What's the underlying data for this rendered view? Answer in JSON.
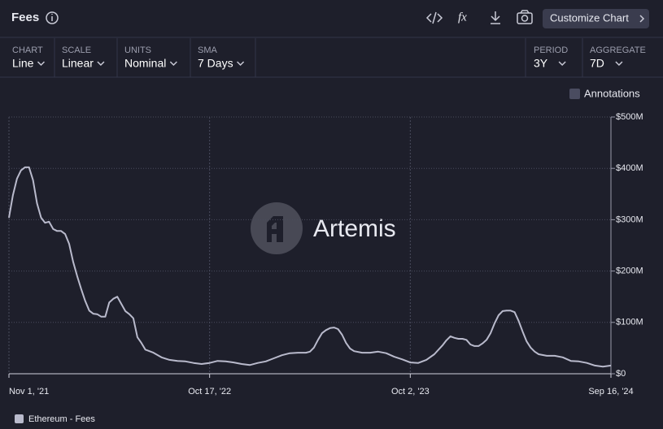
{
  "ui": {
    "title": "Fees",
    "button": "Customize Chart",
    "controls": [
      {
        "label": "CHART",
        "value": "Line"
      },
      {
        "label": "SCALE",
        "value": "Linear"
      },
      {
        "label": "UNITS",
        "value": "Nominal"
      },
      {
        "label": "SMA",
        "value": "7 Days"
      }
    ],
    "right_controls": [
      {
        "label": "PERIOD",
        "value": "3Y"
      },
      {
        "label": "AGGREGATE",
        "value": "7D"
      }
    ],
    "annotations": "Annotations",
    "watermark": "Artemis"
  },
  "chart_data": {
    "type": "line",
    "x": [
      "2021-11-01",
      "2021-11-08",
      "2021-11-15",
      "2021-11-22",
      "2021-11-29",
      "2021-12-06",
      "2021-12-13",
      "2021-12-20",
      "2021-12-27",
      "2022-01-03",
      "2022-01-10",
      "2022-01-17",
      "2022-01-24",
      "2022-01-31",
      "2022-02-07",
      "2022-02-14",
      "2022-02-21",
      "2022-02-28",
      "2022-03-07",
      "2022-03-14",
      "2022-03-21",
      "2022-03-28",
      "2022-04-04",
      "2022-04-11",
      "2022-04-18",
      "2022-04-25",
      "2022-05-02",
      "2022-05-09",
      "2022-05-16",
      "2022-05-23",
      "2022-05-30",
      "2022-06-06",
      "2022-06-13",
      "2022-06-20",
      "2022-06-27",
      "2022-07-04",
      "2022-07-11",
      "2022-07-25",
      "2022-08-08",
      "2022-08-22",
      "2022-09-05",
      "2022-09-19",
      "2022-10-03",
      "2022-10-17",
      "2022-10-31",
      "2022-11-14",
      "2022-11-28",
      "2022-12-12",
      "2022-12-26",
      "2023-01-09",
      "2023-01-23",
      "2023-02-06",
      "2023-02-20",
      "2023-03-06",
      "2023-03-20",
      "2023-04-03",
      "2023-04-10",
      "2023-04-17",
      "2023-04-24",
      "2023-05-01",
      "2023-05-08",
      "2023-05-15",
      "2023-05-22",
      "2023-05-29",
      "2023-06-05",
      "2023-06-12",
      "2023-06-19",
      "2023-06-26",
      "2023-07-10",
      "2023-07-24",
      "2023-08-07",
      "2023-08-21",
      "2023-09-04",
      "2023-09-18",
      "2023-10-02",
      "2023-10-16",
      "2023-10-30",
      "2023-11-13",
      "2023-11-27",
      "2023-12-04",
      "2023-12-11",
      "2023-12-18",
      "2023-12-25",
      "2024-01-01",
      "2024-01-08",
      "2024-01-15",
      "2024-01-22",
      "2024-01-29",
      "2024-02-05",
      "2024-02-12",
      "2024-02-19",
      "2024-02-26",
      "2024-03-04",
      "2024-03-11",
      "2024-03-18",
      "2024-03-25",
      "2024-04-01",
      "2024-04-08",
      "2024-04-15",
      "2024-04-22",
      "2024-04-29",
      "2024-05-06",
      "2024-05-13",
      "2024-05-27",
      "2024-06-10",
      "2024-06-24",
      "2024-07-08",
      "2024-07-22",
      "2024-08-05",
      "2024-08-19",
      "2024-09-02",
      "2024-09-16"
    ],
    "series": [
      {
        "name": "Ethereum - Fees",
        "color": "#b9bacc",
        "values": [
          304000000,
          348000000,
          380000000,
          396000000,
          402000000,
          402000000,
          377000000,
          332000000,
          304000000,
          294000000,
          296000000,
          282000000,
          278000000,
          278000000,
          272000000,
          253000000,
          218000000,
          190000000,
          165000000,
          142000000,
          123000000,
          117000000,
          116000000,
          111000000,
          111000000,
          139000000,
          146000000,
          150000000,
          136000000,
          122000000,
          116000000,
          108000000,
          71000000,
          60000000,
          47000000,
          44000000,
          41000000,
          32000000,
          27000000,
          25000000,
          24000000,
          21000000,
          19000000,
          21000000,
          25000000,
          24000000,
          22000000,
          19000000,
          17000000,
          21000000,
          24000000,
          30000000,
          36000000,
          40000000,
          41000000,
          41000000,
          43000000,
          51000000,
          66000000,
          79000000,
          85000000,
          89000000,
          90000000,
          87000000,
          76000000,
          60000000,
          49000000,
          44000000,
          41000000,
          41000000,
          43000000,
          40000000,
          33000000,
          28000000,
          22000000,
          21000000,
          27000000,
          38000000,
          55000000,
          65000000,
          73000000,
          70000000,
          68000000,
          68000000,
          66000000,
          57000000,
          54000000,
          54000000,
          59000000,
          66000000,
          79000000,
          98000000,
          114000000,
          122000000,
          123000000,
          123000000,
          120000000,
          103000000,
          82000000,
          63000000,
          51000000,
          43000000,
          38000000,
          35000000,
          35000000,
          32000000,
          25000000,
          24000000,
          21000000,
          16000000,
          14000000,
          16000000
        ]
      }
    ],
    "xlim": [
      "2021-11-01",
      "2024-09-16"
    ],
    "xticks": [
      {
        "value": "2021-11-01",
        "label": "Nov 1, '21"
      },
      {
        "value": "2022-10-17",
        "label": "Oct 17, '22"
      },
      {
        "value": "2023-10-02",
        "label": "Oct 2, '23"
      },
      {
        "value": "2024-09-16",
        "label": "Sep 16, '24"
      }
    ],
    "ylim": [
      0,
      500000000
    ],
    "yticks": [
      {
        "value": 0,
        "label": "$0"
      },
      {
        "value": 100000000,
        "label": "$100M"
      },
      {
        "value": 200000000,
        "label": "$200M"
      },
      {
        "value": 300000000,
        "label": "$300M"
      },
      {
        "value": 400000000,
        "label": "$400M"
      },
      {
        "value": 500000000,
        "label": "$500M"
      }
    ],
    "grid": true
  }
}
